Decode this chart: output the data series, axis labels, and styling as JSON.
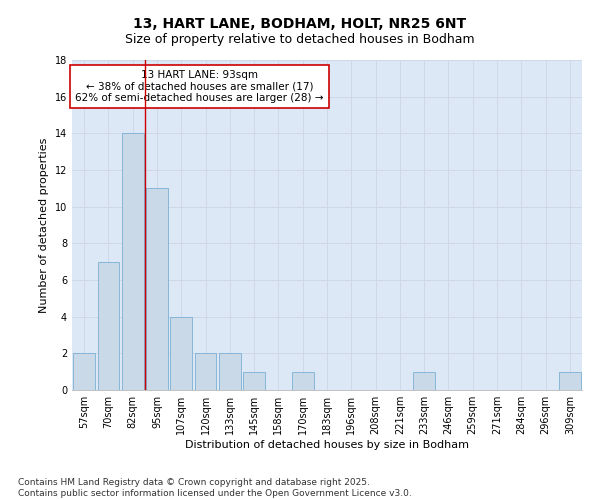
{
  "title_line1": "13, HART LANE, BODHAM, HOLT, NR25 6NT",
  "title_line2": "Size of property relative to detached houses in Bodham",
  "xlabel": "Distribution of detached houses by size in Bodham",
  "ylabel": "Number of detached properties",
  "bar_labels": [
    "57sqm",
    "70sqm",
    "82sqm",
    "95sqm",
    "107sqm",
    "120sqm",
    "133sqm",
    "145sqm",
    "158sqm",
    "170sqm",
    "183sqm",
    "196sqm",
    "208sqm",
    "221sqm",
    "233sqm",
    "246sqm",
    "259sqm",
    "271sqm",
    "284sqm",
    "296sqm",
    "309sqm"
  ],
  "bar_values": [
    2,
    7,
    14,
    11,
    4,
    2,
    2,
    1,
    0,
    1,
    0,
    0,
    0,
    0,
    1,
    0,
    0,
    0,
    0,
    0,
    1
  ],
  "bar_color": "#c9d9e8",
  "bar_edge_color": "#7bafd4",
  "grid_color": "#d0d8e8",
  "background_color": "#dce8f5",
  "annotation_text": "13 HART LANE: 93sqm\n← 38% of detached houses are smaller (17)\n62% of semi-detached houses are larger (28) →",
  "annotation_box_color": "white",
  "annotation_box_edge": "#cc0000",
  "ylim": [
    0,
    18
  ],
  "yticks": [
    0,
    2,
    4,
    6,
    8,
    10,
    12,
    14,
    16,
    18
  ],
  "footer_text": "Contains HM Land Registry data © Crown copyright and database right 2025.\nContains public sector information licensed under the Open Government Licence v3.0.",
  "red_line_color": "#cc0000",
  "title_fontsize": 10,
  "subtitle_fontsize": 9,
  "axis_label_fontsize": 8,
  "tick_fontsize": 7,
  "annotation_fontsize": 7.5,
  "footer_fontsize": 6.5
}
